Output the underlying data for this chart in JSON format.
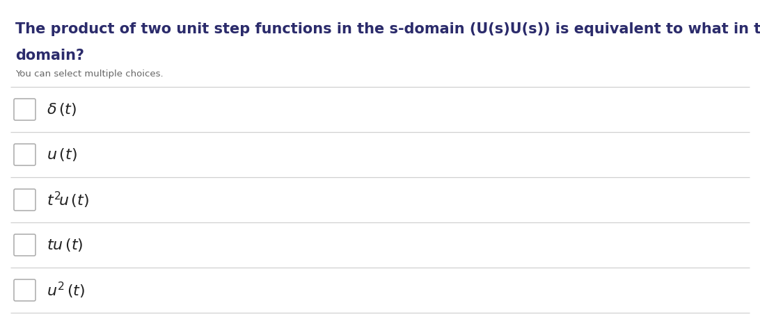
{
  "question_line1": "The product of two unit step functions in the s-domain (U(s)U(s)) is equivalent to what in the time",
  "question_line2": "domain?",
  "subtitle": "You can select multiple choices.",
  "choices": [
    "$\\delta\\,(t)$",
    "$u\\,(t)$",
    "$t^2\\!u\\,(t)$",
    "$tu\\,(t)$",
    "$u^2\\,(t)$"
  ],
  "bg_color": "#ffffff",
  "question_color": "#2b2b6b",
  "subtitle_color": "#666666",
  "choice_color": "#222222",
  "separator_color": "#d0d0d0",
  "checkbox_edge_color": "#aaaaaa",
  "question_fontsize": 15.0,
  "subtitle_fontsize": 9.5,
  "choice_fontsize": 16,
  "fig_width": 10.92,
  "fig_height": 4.82,
  "dpi": 100
}
